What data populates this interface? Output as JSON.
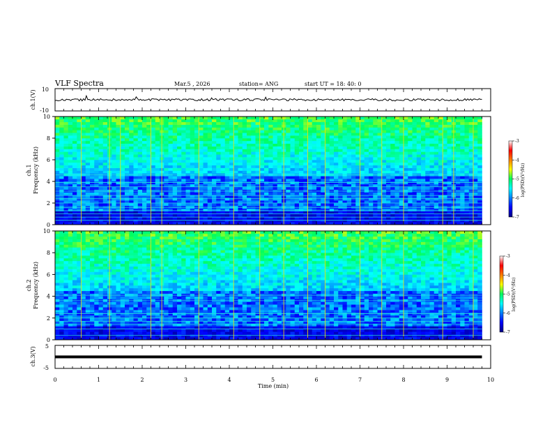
{
  "header": {
    "title": "VLF Spectra",
    "date": "Mar.5 , 2026",
    "station": "station= ANG",
    "start": "start UT = 18: 40: 0"
  },
  "chart_data": [
    {
      "id": "ch1_wave",
      "type": "line",
      "ylabel": "ch.1(V)",
      "ylim": [
        -10,
        10
      ],
      "tick_labels": [
        "10",
        "-10"
      ],
      "baseline": 0,
      "noise_amplitude": 1,
      "xlim": [
        0,
        9.8
      ]
    },
    {
      "id": "ch1_spec",
      "type": "heatmap",
      "ylabel_lines": [
        "ch.1",
        "Frequency (kHz)"
      ],
      "ylim": [
        0,
        10
      ],
      "y_ticks": [
        0,
        2,
        4,
        6,
        8,
        10
      ],
      "xlim": [
        0,
        10
      ],
      "data_end_min": 9.8,
      "colorbar": {
        "label": "log(PSD)(V²/Hz)",
        "range": [
          -7,
          -3
        ],
        "ticks": [
          -3,
          -4,
          -5,
          -6,
          -7
        ]
      },
      "horizontal_lines_khz": [
        0.4,
        0.7,
        1.0,
        1.3,
        1.6,
        2.0,
        2.4,
        2.7,
        3.1,
        3.5,
        3.9,
        4.6
      ],
      "vertical_spikes_min": [
        0.6,
        1.25,
        1.5,
        2.2,
        2.45,
        3.3,
        4.1,
        4.7,
        5.25,
        5.8,
        6.2,
        7.0,
        7.5,
        8.0,
        8.9,
        9.15,
        9.6
      ]
    },
    {
      "id": "ch2_spec",
      "type": "heatmap",
      "ylabel_lines": [
        "ch.2",
        "Frequency (kHz)"
      ],
      "ylim": [
        0,
        10
      ],
      "y_ticks": [
        0,
        2,
        4,
        6,
        8,
        10
      ],
      "xlim": [
        0,
        10
      ],
      "data_end_min": 9.8,
      "colorbar": {
        "label": "log(PSD)(V²/Hz)",
        "range": [
          -7,
          -3
        ],
        "ticks": [
          -3,
          -4,
          -5,
          -6,
          -7
        ]
      },
      "horizontal_lines_khz": [
        0.4,
        1.0,
        1.4,
        1.7,
        2.0,
        2.4,
        3.6,
        4.1
      ],
      "vertical_spikes_min": [
        0.6,
        1.25,
        2.2,
        2.45,
        3.3,
        4.1,
        4.7,
        5.25,
        5.8,
        6.2,
        7.0,
        7.5,
        8.0,
        8.9,
        9.6
      ]
    },
    {
      "id": "ch3_wave",
      "type": "line",
      "ylabel": "ch.3(V)",
      "ylim": [
        -5,
        5
      ],
      "tick_labels": [
        "5",
        "-5"
      ],
      "baseline": 0,
      "noise_amplitude": 0,
      "xlim": [
        0,
        9.8
      ]
    }
  ],
  "x_axis": {
    "label": "Time (min)",
    "range": [
      0,
      10
    ],
    "tick_labels": [
      "0",
      "1",
      "2",
      "3",
      "4",
      "5",
      "6",
      "7",
      "8",
      "9",
      "10"
    ]
  }
}
